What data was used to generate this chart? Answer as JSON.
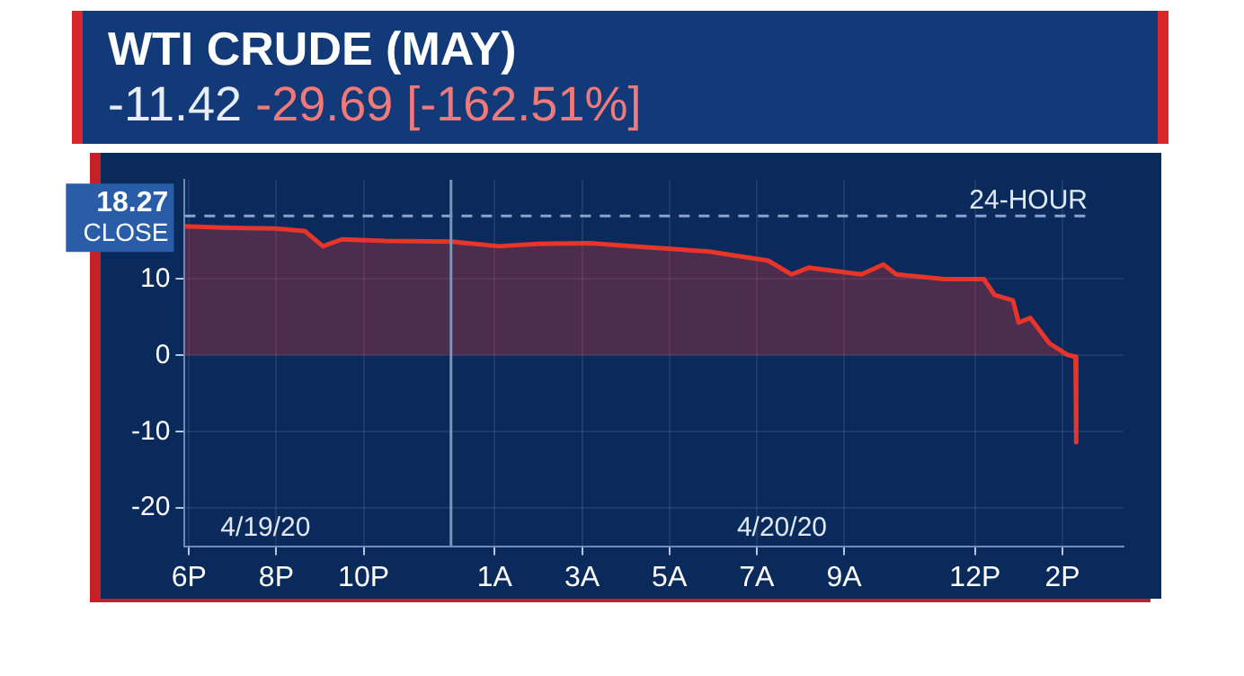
{
  "chart_data": {
    "type": "area",
    "title": "WTI CRUDE (MAY)",
    "subtitle": "-11.42 -29.69 [-162.51%]",
    "x": [
      "--04-19T17:54",
      "--04-19T19:00",
      "--04-19T20:00",
      "--04-19T20:39",
      "--04-19T21:04",
      "--04-19T21:30",
      "--04-19T22:30",
      "--04-20T00:00",
      "--04-20T01:06",
      "--04-20T02:00",
      "--04-20T03:11",
      "--04-20T04:24",
      "--04-20T05:54",
      "--04-20T07:16",
      "--04-20T07:48",
      "--04-20T08:12",
      "--04-20T09:24",
      "--04-20T09:54",
      "--04-20T10:12",
      "--04-20T11:18",
      "--04-20T12:12",
      "--04-20T12:27",
      "--04-20T12:52",
      "--04-20T13:00",
      "--04-20T13:16",
      "--04-20T13:42",
      "--04-20T14:06",
      "--04-20T14:18",
      "--04-20T14:19"
    ],
    "series": [
      {
        "color": "#e8352a",
        "values": [
          16.9,
          16.7,
          16.6,
          16.3,
          14.3,
          15.2,
          15.0,
          14.9,
          14.3,
          14.6,
          14.7,
          14.2,
          13.6,
          12.4,
          10.6,
          11.5,
          10.6,
          11.9,
          10.6,
          10.0,
          10.0,
          7.9,
          7.2,
          4.3,
          4.9,
          1.6,
          0.1,
          -0.2,
          -11.4
        ]
      }
    ],
    "xlim": [
      "--04-19T17:54",
      "--04-20T15:24"
    ],
    "ylim": [
      -25,
      23
    ],
    "xticks": [
      {
        "value": "--04-19T18:00",
        "label": "6P"
      },
      {
        "value": "--04-19T20:00",
        "label": "8P"
      },
      {
        "value": "--04-19T22:00",
        "label": "10P"
      },
      {
        "value": "--04-20T01:00",
        "label": "1A"
      },
      {
        "value": "--04-20T03:00",
        "label": "3A"
      },
      {
        "value": "--04-20T05:00",
        "label": "5A"
      },
      {
        "value": "--04-20T07:00",
        "label": "7A"
      },
      {
        "value": "--04-20T09:00",
        "label": "9A"
      },
      {
        "value": "--04-20T12:00",
        "label": "12P"
      },
      {
        "value": "--04-20T14:00",
        "label": "2P"
      }
    ],
    "yticks": [
      -20,
      -10,
      0,
      10
    ],
    "grid": true,
    "legend": false,
    "marker": "none",
    "ref_lines": [
      {
        "axis": "y",
        "value": 18.27,
        "label": "18.27 CLOSE",
        "line_style": "dashed",
        "color": "#8aa3c8"
      },
      {
        "axis": "x",
        "value": "--04-20T00:00",
        "color": "#7d93b8"
      }
    ],
    "annotations": [
      "4/19/20",
      "4/20/20",
      "24-HOUR"
    ]
  }
}
